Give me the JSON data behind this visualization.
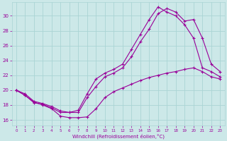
{
  "background_color": "#cce8e8",
  "grid_color": "#aad4d4",
  "line_color": "#990099",
  "xlabel": "Windchill (Refroidissement éolien,°C)",
  "ylabel_ticks": [
    16,
    18,
    20,
    22,
    24,
    26,
    28,
    30
  ],
  "xlim": [
    -0.5,
    23.5
  ],
  "ylim": [
    15.2,
    31.8
  ],
  "xticks": [
    0,
    1,
    2,
    3,
    4,
    5,
    6,
    7,
    8,
    9,
    10,
    11,
    12,
    13,
    14,
    15,
    16,
    17,
    18,
    19,
    20,
    21,
    22,
    23
  ],
  "series": [
    {
      "x": [
        0,
        1,
        2,
        3,
        4,
        5,
        6,
        7,
        8,
        9,
        10,
        11,
        12,
        13,
        14,
        15,
        16,
        17,
        18,
        19,
        20,
        21,
        22,
        23
      ],
      "y": [
        20.0,
        19.3,
        18.3,
        18.1,
        17.6,
        17.0,
        17.0,
        17.3,
        19.5,
        21.5,
        22.3,
        22.8,
        23.5,
        25.5,
        27.5,
        29.5,
        31.2,
        30.5,
        30.0,
        28.8,
        27.0,
        23.0,
        22.5,
        21.8
      ]
    },
    {
      "x": [
        0,
        1,
        2,
        3,
        4,
        5,
        6,
        7,
        8,
        9,
        10,
        11,
        12,
        13,
        14,
        15,
        16,
        17,
        18,
        19,
        20,
        21,
        22,
        23
      ],
      "y": [
        20.0,
        19.5,
        18.5,
        18.2,
        17.8,
        17.2,
        17.0,
        17.0,
        19.0,
        20.5,
        21.8,
        22.3,
        23.0,
        24.5,
        26.5,
        28.2,
        30.3,
        31.0,
        30.5,
        29.3,
        29.5,
        27.0,
        23.5,
        22.5
      ]
    },
    {
      "x": [
        0,
        1,
        2,
        3,
        4,
        5,
        6,
        7,
        8,
        9,
        10,
        11,
        12,
        13,
        14,
        15,
        16,
        17,
        18,
        19,
        20,
        21,
        22,
        23
      ],
      "y": [
        20.0,
        19.3,
        18.4,
        18.0,
        17.5,
        16.5,
        16.3,
        16.3,
        16.4,
        17.5,
        19.0,
        19.8,
        20.3,
        20.8,
        21.3,
        21.7,
        22.0,
        22.3,
        22.5,
        22.8,
        23.0,
        22.5,
        21.8,
        21.5
      ]
    }
  ]
}
